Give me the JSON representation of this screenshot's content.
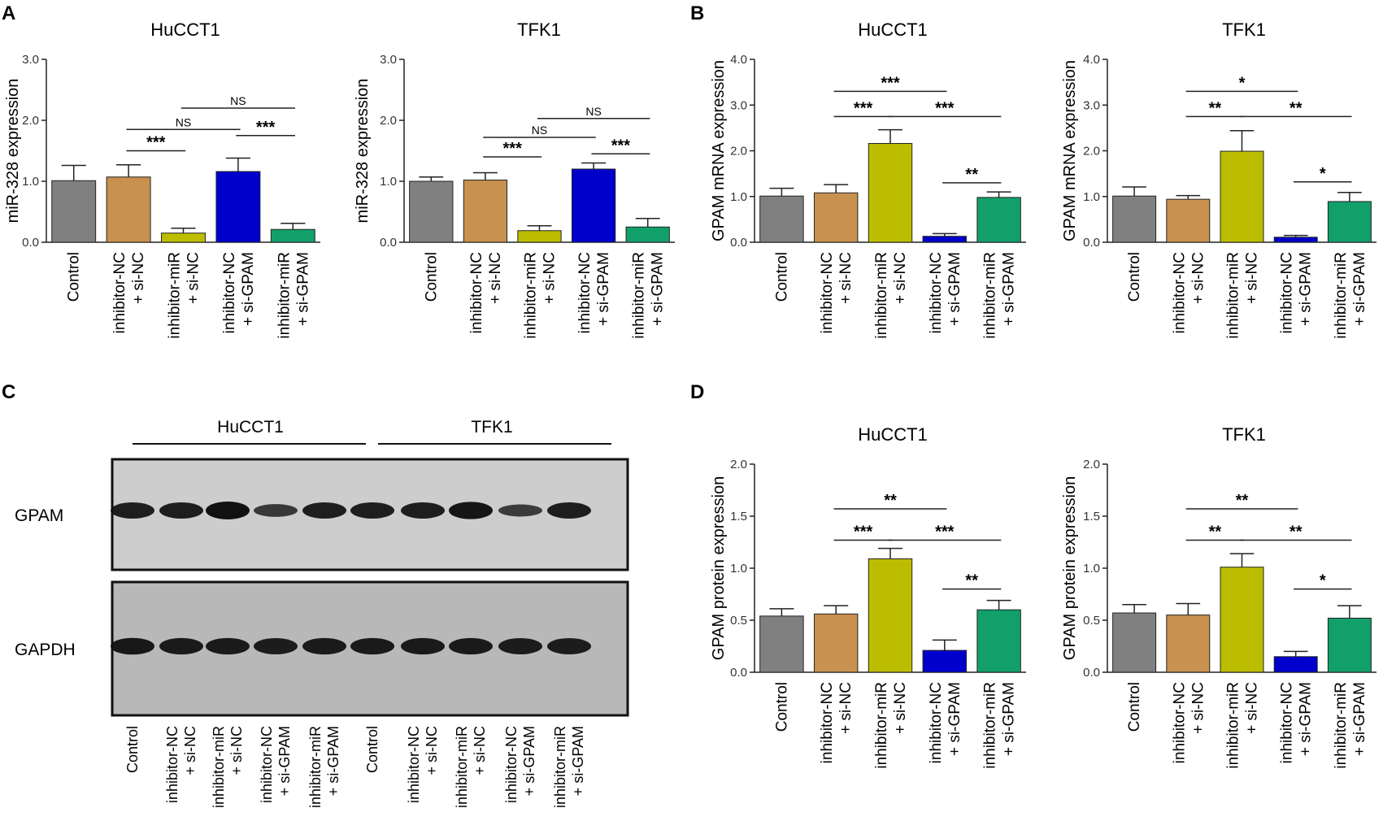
{
  "panels": {
    "A": "A",
    "B": "B",
    "C": "C",
    "D": "D"
  },
  "blot": {
    "groups": [
      "HuCCT1",
      "TFK1"
    ],
    "rows": [
      "GPAM",
      "GAPDH"
    ],
    "lanes": [
      [
        "Control"
      ],
      [
        "inhibitor-NC",
        "+ si-NC"
      ],
      [
        "inhibitor-miR",
        "+ si-NC"
      ],
      [
        "inhibitor-NC",
        "+ si-GPAM"
      ],
      [
        "inhibitor-miR",
        "+ si-GPAM"
      ],
      [
        "Control"
      ],
      [
        "inhibitor-NC",
        "+ si-NC"
      ],
      [
        "inhibitor-miR",
        "+ si-NC"
      ],
      [
        "inhibitor-NC",
        "+ si-GPAM"
      ],
      [
        "inhibitor-miR",
        "+ si-GPAM"
      ]
    ],
    "gpam_band_intensity": [
      0.85,
      0.85,
      1.0,
      0.55,
      0.85,
      0.85,
      0.85,
      0.95,
      0.5,
      0.85
    ],
    "gapdh_band_intensity": [
      0.9,
      0.88,
      0.88,
      0.85,
      0.88,
      0.88,
      0.88,
      0.88,
      0.85,
      0.85
    ]
  },
  "chart_data": [
    {
      "type": "bar",
      "panel": "A",
      "title": "HuCCT1",
      "ylabel": "miR-328 expression",
      "ylim": [
        0,
        3
      ],
      "yticks": [
        "0.0",
        "1.0",
        "2.0",
        "3.0"
      ],
      "categories": [
        [
          "Control"
        ],
        [
          "inhibitor-NC",
          "+ si-NC"
        ],
        [
          "inhibitor-miR",
          "+ si-NC"
        ],
        [
          "inhibitor-NC",
          "+ si-GPAM"
        ],
        [
          "inhibitor-miR",
          "+ si-GPAM"
        ]
      ],
      "values": [
        1.01,
        1.07,
        0.15,
        1.16,
        0.21
      ],
      "errors": [
        0.25,
        0.2,
        0.08,
        0.22,
        0.1
      ],
      "colors": [
        "#808080",
        "#c8914f",
        "#bdbd00",
        "#0000cc",
        "#12a06a"
      ],
      "significance": [
        {
          "from": 1,
          "to": 2,
          "y": 1.5,
          "label": "***"
        },
        {
          "from": 3,
          "to": 4,
          "y": 1.75,
          "label": "***"
        },
        {
          "from": 1,
          "to": 3,
          "y": 1.85,
          "label": "NS"
        },
        {
          "from": 2,
          "to": 4,
          "y": 2.2,
          "label": "NS"
        }
      ]
    },
    {
      "type": "bar",
      "panel": "A",
      "title": "TFK1",
      "ylabel": "miR-328 expression",
      "ylim": [
        0,
        3
      ],
      "yticks": [
        "0.0",
        "1.0",
        "2.0",
        "3.0"
      ],
      "categories": [
        [
          "Control"
        ],
        [
          "inhibitor-NC",
          "+ si-NC"
        ],
        [
          "inhibitor-miR",
          "+ si-NC"
        ],
        [
          "inhibitor-NC",
          "+ si-GPAM"
        ],
        [
          "inhibitor-miR",
          "+ si-GPAM"
        ]
      ],
      "values": [
        1.0,
        1.02,
        0.19,
        1.2,
        0.25
      ],
      "errors": [
        0.07,
        0.12,
        0.08,
        0.1,
        0.14
      ],
      "colors": [
        "#808080",
        "#c8914f",
        "#bdbd00",
        "#0000cc",
        "#12a06a"
      ],
      "significance": [
        {
          "from": 1,
          "to": 2,
          "y": 1.4,
          "label": "***"
        },
        {
          "from": 3,
          "to": 4,
          "y": 1.45,
          "label": "***"
        },
        {
          "from": 1,
          "to": 3,
          "y": 1.72,
          "label": "NS"
        },
        {
          "from": 2,
          "to": 4,
          "y": 2.03,
          "label": "NS"
        }
      ]
    },
    {
      "type": "bar",
      "panel": "B",
      "title": "HuCCT1",
      "ylabel": "GPAM mRNA expression",
      "ylim": [
        0,
        4
      ],
      "yticks": [
        "0.0",
        "1.0",
        "2.0",
        "3.0",
        "4.0"
      ],
      "categories": [
        [
          "Control"
        ],
        [
          "inhibitor-NC",
          "+ si-NC"
        ],
        [
          "inhibitor-miR",
          "+ si-NC"
        ],
        [
          "inhibitor-NC",
          "+ si-GPAM"
        ],
        [
          "inhibitor-miR",
          "+ si-GPAM"
        ]
      ],
      "values": [
        1.01,
        1.08,
        2.16,
        0.13,
        0.98
      ],
      "errors": [
        0.17,
        0.18,
        0.3,
        0.06,
        0.12
      ],
      "colors": [
        "#808080",
        "#c8914f",
        "#bdbd00",
        "#0000cc",
        "#12a06a"
      ],
      "significance": [
        {
          "from": 1,
          "to": 3,
          "y": 3.3,
          "label": "***"
        },
        {
          "from": 1,
          "to": 2,
          "y": 2.75,
          "label": "***"
        },
        {
          "from": 2,
          "to": 4,
          "y": 2.75,
          "label": "***"
        },
        {
          "from": 3,
          "to": 4,
          "y": 1.3,
          "label": "**"
        }
      ]
    },
    {
      "type": "bar",
      "panel": "B",
      "title": "TFK1",
      "ylabel": "GPAM mRNA expression",
      "ylim": [
        0,
        4
      ],
      "yticks": [
        "0.0",
        "1.0",
        "2.0",
        "3.0",
        "4.0"
      ],
      "categories": [
        [
          "Control"
        ],
        [
          "inhibitor-NC",
          "+ si-NC"
        ],
        [
          "inhibitor-miR",
          "+ si-NC"
        ],
        [
          "inhibitor-NC",
          "+ si-GPAM"
        ],
        [
          "inhibitor-miR",
          "+ si-GPAM"
        ]
      ],
      "values": [
        1.01,
        0.94,
        1.99,
        0.11,
        0.89
      ],
      "errors": [
        0.2,
        0.08,
        0.45,
        0.04,
        0.2
      ],
      "colors": [
        "#808080",
        "#c8914f",
        "#bdbd00",
        "#0000cc",
        "#12a06a"
      ],
      "significance": [
        {
          "from": 1,
          "to": 3,
          "y": 3.3,
          "label": "*"
        },
        {
          "from": 1,
          "to": 2,
          "y": 2.75,
          "label": "**"
        },
        {
          "from": 2,
          "to": 4,
          "y": 2.75,
          "label": "**"
        },
        {
          "from": 3,
          "to": 4,
          "y": 1.32,
          "label": "*"
        }
      ]
    },
    {
      "type": "bar",
      "panel": "D",
      "title": "HuCCT1",
      "ylabel": "GPAM protein expression",
      "ylim": [
        0,
        2
      ],
      "yticks": [
        "0.0",
        "0.5",
        "1.0",
        "1.5",
        "2.0"
      ],
      "categories": [
        [
          "Control"
        ],
        [
          "inhibitor-NC",
          "+ si-NC"
        ],
        [
          "inhibitor-miR",
          "+ si-NC"
        ],
        [
          "inhibitor-NC",
          "+ si-GPAM"
        ],
        [
          "inhibitor-miR",
          "+ si-GPAM"
        ]
      ],
      "values": [
        0.54,
        0.56,
        1.09,
        0.21,
        0.6
      ],
      "errors": [
        0.07,
        0.08,
        0.1,
        0.1,
        0.09
      ],
      "colors": [
        "#808080",
        "#c8914f",
        "#bdbd00",
        "#0000cc",
        "#12a06a"
      ],
      "significance": [
        {
          "from": 1,
          "to": 3,
          "y": 1.57,
          "label": "**"
        },
        {
          "from": 1,
          "to": 2,
          "y": 1.27,
          "label": "***"
        },
        {
          "from": 2,
          "to": 4,
          "y": 1.27,
          "label": "***"
        },
        {
          "from": 3,
          "to": 4,
          "y": 0.8,
          "label": "**"
        }
      ]
    },
    {
      "type": "bar",
      "panel": "D",
      "title": "TFK1",
      "ylabel": "GPAM protein expression",
      "ylim": [
        0,
        2
      ],
      "yticks": [
        "0.0",
        "0.5",
        "1.0",
        "1.5",
        "2.0"
      ],
      "categories": [
        [
          "Control"
        ],
        [
          "inhibitor-NC",
          "+ si-NC"
        ],
        [
          "inhibitor-miR",
          "+ si-NC"
        ],
        [
          "inhibitor-NC",
          "+ si-GPAM"
        ],
        [
          "inhibitor-miR",
          "+ si-GPAM"
        ]
      ],
      "values": [
        0.57,
        0.55,
        1.01,
        0.15,
        0.52
      ],
      "errors": [
        0.08,
        0.11,
        0.13,
        0.05,
        0.12
      ],
      "colors": [
        "#808080",
        "#c8914f",
        "#bdbd00",
        "#0000cc",
        "#12a06a"
      ],
      "significance": [
        {
          "from": 1,
          "to": 3,
          "y": 1.57,
          "label": "**"
        },
        {
          "from": 1,
          "to": 2,
          "y": 1.27,
          "label": "**"
        },
        {
          "from": 2,
          "to": 4,
          "y": 1.27,
          "label": "**"
        },
        {
          "from": 3,
          "to": 4,
          "y": 0.8,
          "label": "*"
        }
      ]
    }
  ]
}
